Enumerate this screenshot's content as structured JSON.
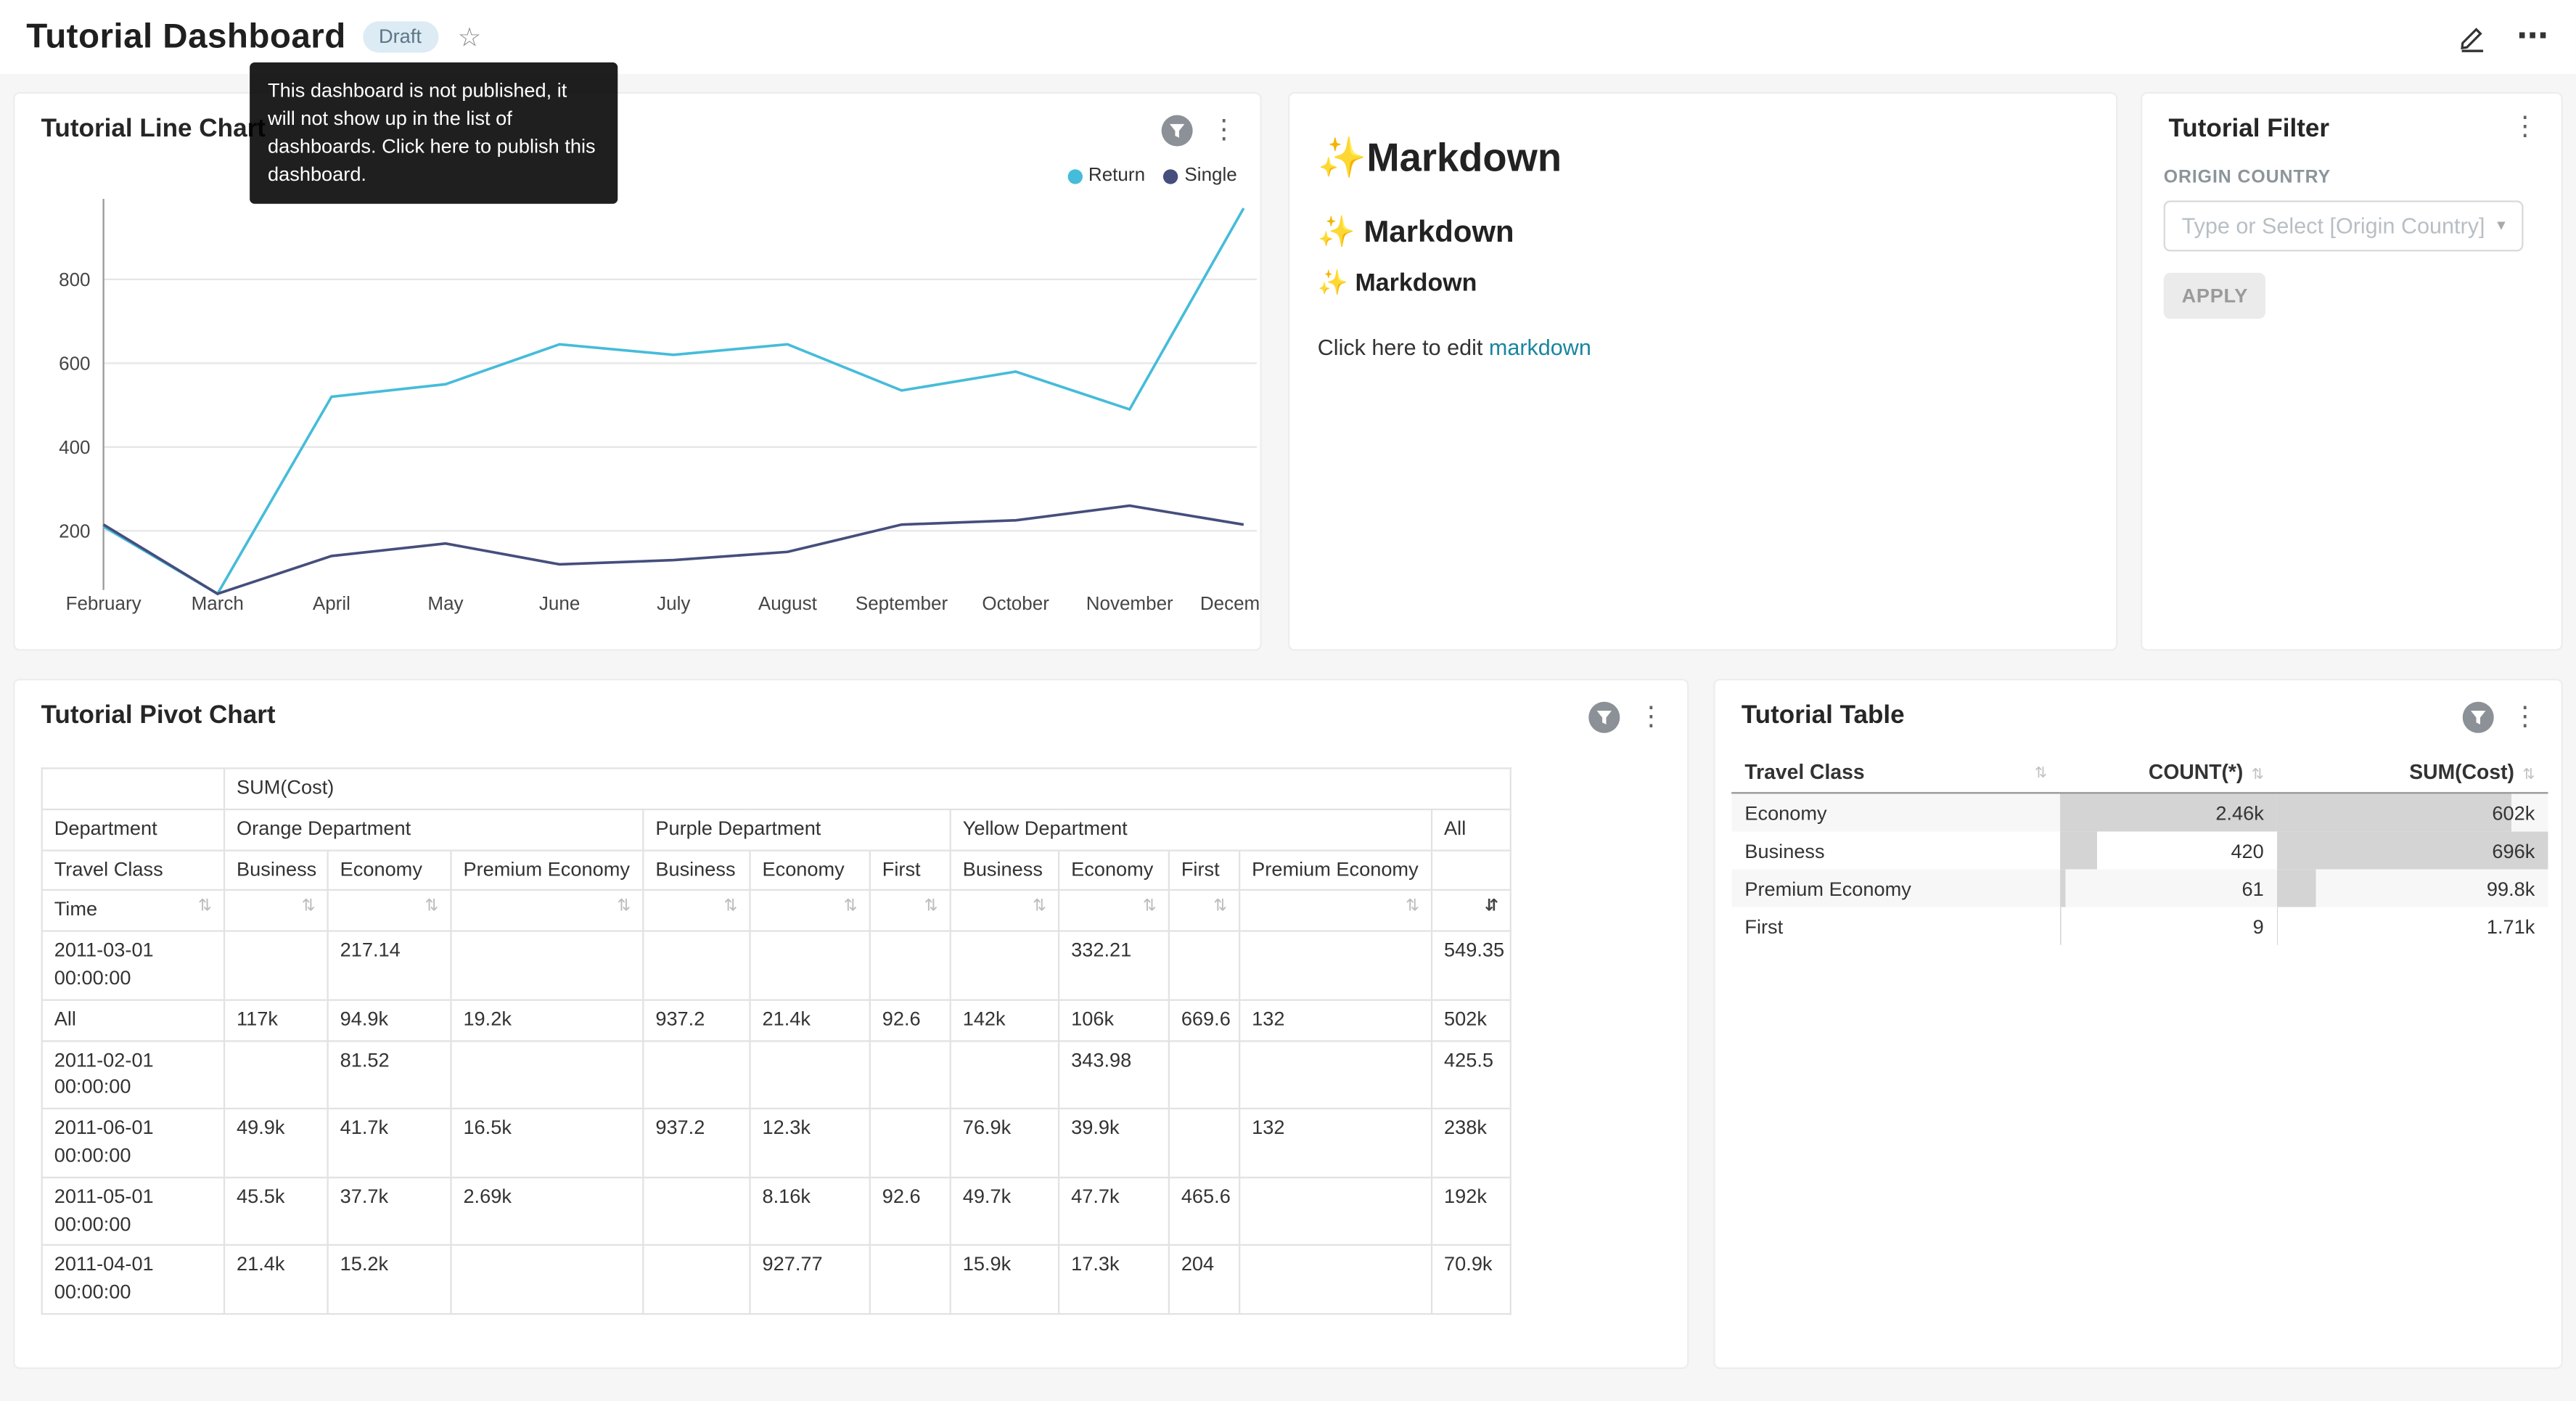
{
  "header": {
    "title": "Tutorial Dashboard",
    "badge": "Draft",
    "tooltip": "This dashboard is not published, it will not show up in the list of dashboards. Click here to publish this dashboard."
  },
  "icons": {
    "kebab": "⋮",
    "more": "⋯",
    "star": "☆",
    "sort": "⇅",
    "sort_active": "⇵",
    "caret_down": "▾"
  },
  "colors": {
    "series_return": "#45bcd9",
    "series_single": "#454e7c",
    "link": "#1a85a0",
    "table_bar": "#d4d4d4"
  },
  "cards": {
    "line_chart": {
      "title": "Tutorial Line Chart"
    },
    "markdown": {
      "h1": "✨Markdown",
      "h2": "✨ Markdown",
      "h3": "✨ Markdown",
      "paragraph_prefix": "Click here to edit ",
      "link_text": "markdown"
    },
    "filter": {
      "title": "Tutorial Filter",
      "field_label": "ORIGIN COUNTRY",
      "select_placeholder": "Type or Select [Origin Country]",
      "apply_label": "APPLY"
    },
    "pivot": {
      "title": "Tutorial Pivot Chart",
      "measure_header": "SUM(Cost)",
      "dept_header": "Department",
      "class_header": "Travel Class",
      "time_header": "Time",
      "groups": [
        {
          "label": "Orange Department",
          "cols": [
            "Business",
            "Economy",
            "Premium Economy"
          ]
        },
        {
          "label": "Purple Department",
          "cols": [
            "Business",
            "Economy",
            "First"
          ]
        },
        {
          "label": "Yellow Department",
          "cols": [
            "Business",
            "Economy",
            "First",
            "Premium Economy"
          ]
        },
        {
          "label": "All",
          "cols": [
            ""
          ]
        }
      ],
      "rows": [
        {
          "label": "2011-03-01 00:00:00",
          "values": [
            "",
            "217.14",
            "",
            "",
            "",
            "",
            "",
            "332.21",
            "",
            "",
            "549.35"
          ]
        },
        {
          "label": "All",
          "values": [
            "117k",
            "94.9k",
            "19.2k",
            "937.2",
            "21.4k",
            "92.6",
            "142k",
            "106k",
            "669.6",
            "132",
            "502k"
          ]
        },
        {
          "label": "2011-02-01 00:00:00",
          "values": [
            "",
            "81.52",
            "",
            "",
            "",
            "",
            "",
            "343.98",
            "",
            "",
            "425.5"
          ]
        },
        {
          "label": "2011-06-01 00:00:00",
          "values": [
            "49.9k",
            "41.7k",
            "16.5k",
            "937.2",
            "12.3k",
            "",
            "76.9k",
            "39.9k",
            "",
            "132",
            "238k"
          ]
        },
        {
          "label": "2011-05-01 00:00:00",
          "values": [
            "45.5k",
            "37.7k",
            "2.69k",
            "",
            "8.16k",
            "92.6",
            "49.7k",
            "47.7k",
            "465.6",
            "",
            "192k"
          ]
        },
        {
          "label": "2011-04-01 00:00:00",
          "values": [
            "21.4k",
            "15.2k",
            "",
            "",
            "927.77",
            "",
            "15.9k",
            "17.3k",
            "204",
            "",
            "70.9k"
          ]
        }
      ]
    },
    "table": {
      "title": "Tutorial Table",
      "columns": [
        "Travel Class",
        "COUNT(*)",
        "SUM(Cost)"
      ],
      "rows": [
        {
          "travel_class": "Economy",
          "count": "2.46k",
          "sum": "602k",
          "count_pct": 100,
          "sum_pct": 86.5
        },
        {
          "travel_class": "Business",
          "count": "420",
          "sum": "696k",
          "count_pct": 17.1,
          "sum_pct": 100
        },
        {
          "travel_class": "Premium Economy",
          "count": "61",
          "sum": "99.8k",
          "count_pct": 2.5,
          "sum_pct": 14.3
        },
        {
          "travel_class": "First",
          "count": "9",
          "sum": "1.71k",
          "count_pct": 0.4,
          "sum_pct": 0.3
        }
      ]
    }
  },
  "chart_data": {
    "type": "line",
    "title": "Tutorial Line Chart",
    "x": [
      "February",
      "March",
      "April",
      "May",
      "June",
      "July",
      "August",
      "September",
      "October",
      "November",
      "December"
    ],
    "series": [
      {
        "name": "Return",
        "color": "#45bcd9",
        "values": [
          210,
          50,
          520,
          550,
          645,
          620,
          645,
          535,
          580,
          490,
          970
        ]
      },
      {
        "name": "Single",
        "color": "#454e7c",
        "values": [
          215,
          50,
          140,
          170,
          120,
          130,
          150,
          215,
          225,
          260,
          215
        ]
      }
    ],
    "ylim": [
      0,
      1000
    ],
    "yticks": [
      200,
      400,
      600,
      800
    ],
    "grid": true,
    "legend_position": "top-right"
  }
}
